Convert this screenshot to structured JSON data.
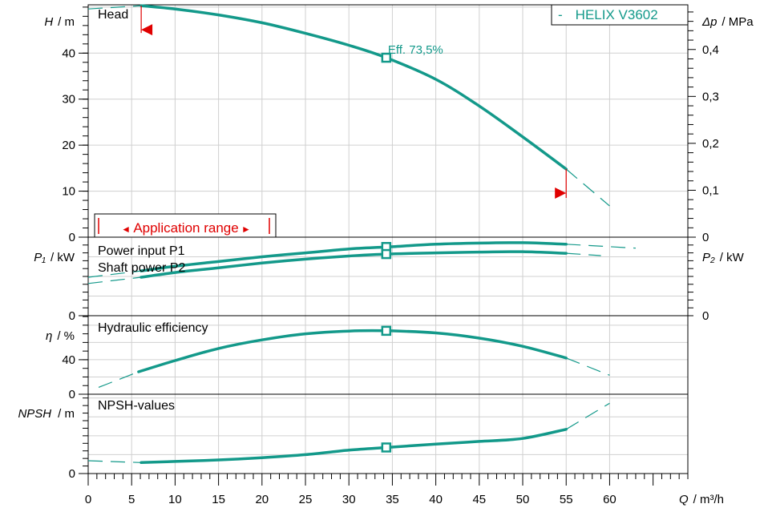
{
  "chart_data": {
    "type": "line",
    "product_name": "HELIX V3602",
    "product_prefix": "-",
    "curve_color": "#13998a",
    "marker_color": "#e00000",
    "x_axis": {
      "label_symbol": "Q",
      "label_unit": "/ m³/h",
      "range": [
        0,
        69
      ],
      "ticks": [
        0,
        5,
        10,
        15,
        20,
        25,
        30,
        35,
        40,
        45,
        50,
        55,
        60
      ]
    },
    "duty_point": {
      "q": 34.3,
      "h": 39.0,
      "label": "Eff.  73,5%"
    },
    "application_range": {
      "label": "Application range",
      "q_min": 6.1,
      "q_max": 55.0
    },
    "panels": [
      {
        "id": "head",
        "title": "Head",
        "y_label_symbol": "H",
        "y_label_unit": "/ m",
        "y_range": [
          0,
          50.5
        ],
        "y_ticks": [
          0,
          10,
          20,
          30,
          40
        ],
        "y2_label_symbol": "Δp",
        "y2_label_unit": "/ MPa",
        "y2_ticks": [
          "0",
          "0,1",
          "0,2",
          "0,3",
          "0,4"
        ],
        "series": [
          {
            "solid": [
              [
                6.1,
                50.3
              ],
              [
                10,
                49.6
              ],
              [
                15,
                48.3
              ],
              [
                20,
                46.6
              ],
              [
                25,
                44.3
              ],
              [
                30,
                41.7
              ],
              [
                34.3,
                39.0
              ],
              [
                40,
                34.3
              ],
              [
                45,
                28.5
              ],
              [
                50,
                21.8
              ],
              [
                55,
                14.8
              ]
            ],
            "dashed_left": [
              [
                0,
                49.6
              ],
              [
                6.1,
                50.3
              ]
            ],
            "dashed_right": [
              [
                55,
                14.8
              ],
              [
                60,
                6.8
              ]
            ]
          }
        ]
      },
      {
        "id": "power",
        "title": "Power input P1",
        "subtitle": "Shaft power P2",
        "y_label_symbol": "P₁",
        "y_label_unit": "/ kW",
        "y2_label_symbol": "P₂",
        "y2_label_unit": "/ kW",
        "y_range": [
          0,
          10
        ],
        "y_ticks": [
          0
        ],
        "y2_ticks": [
          "0"
        ],
        "series": [
          {
            "name": "Power input P1",
            "solid": [
              [
                6.1,
                5.7
              ],
              [
                10,
                6.3
              ],
              [
                15,
                6.9
              ],
              [
                20,
                7.5
              ],
              [
                25,
                8.0
              ],
              [
                30,
                8.5
              ],
              [
                34.3,
                8.75
              ],
              [
                40,
                9.1
              ],
              [
                45,
                9.25
              ],
              [
                50,
                9.3
              ],
              [
                55,
                9.1
              ]
            ],
            "dashed_left": [
              [
                0,
                4.9
              ],
              [
                6.1,
                5.7
              ]
            ],
            "dashed_right": [
              [
                55,
                9.1
              ],
              [
                63,
                8.6
              ]
            ]
          },
          {
            "name": "Shaft power P2",
            "solid": [
              [
                6.1,
                4.9
              ],
              [
                10,
                5.5
              ],
              [
                15,
                6.1
              ],
              [
                20,
                6.7
              ],
              [
                25,
                7.2
              ],
              [
                30,
                7.6
              ],
              [
                34.3,
                7.85
              ],
              [
                40,
                8.0
              ],
              [
                45,
                8.1
              ],
              [
                50,
                8.15
              ],
              [
                55,
                7.95
              ]
            ],
            "dashed_left": [
              [
                0,
                4.1
              ],
              [
                6.1,
                4.9
              ]
            ],
            "dashed_right": [
              [
                55,
                7.95
              ],
              [
                59,
                7.65
              ]
            ]
          }
        ]
      },
      {
        "id": "efficiency",
        "title": "Hydraulic efficiency",
        "y_label_symbol": "η",
        "y_label_unit": "/ %",
        "y_range": [
          0,
          91
        ],
        "y_ticks": [
          0,
          40
        ],
        "series": [
          {
            "solid": [
              [
                5.8,
                26
              ],
              [
                10,
                39
              ],
              [
                15,
                53
              ],
              [
                20,
                63
              ],
              [
                25,
                70
              ],
              [
                30,
                73.2
              ],
              [
                34.3,
                73.5
              ],
              [
                40,
                71
              ],
              [
                45,
                65
              ],
              [
                50,
                55.5
              ],
              [
                55,
                42
              ]
            ],
            "dashed_left": [
              [
                1.2,
                8
              ],
              [
                5.8,
                26
              ]
            ],
            "dashed_right": [
              [
                55,
                42
              ],
              [
                60,
                22
              ]
            ]
          }
        ]
      },
      {
        "id": "npsh",
        "title": "NPSH-values",
        "y_label_symbol": "NPSH",
        "y_label_unit": "/ m",
        "y_range": [
          0,
          10.5
        ],
        "y_ticks": [
          0
        ],
        "series": [
          {
            "solid": [
              [
                6.1,
                1.45
              ],
              [
                10,
                1.6
              ],
              [
                15,
                1.8
              ],
              [
                20,
                2.1
              ],
              [
                25,
                2.5
              ],
              [
                30,
                3.1
              ],
              [
                34.3,
                3.45
              ],
              [
                40,
                3.9
              ],
              [
                45,
                4.25
              ],
              [
                50,
                4.65
              ],
              [
                55,
                5.85
              ]
            ],
            "dashed_left": [
              [
                0,
                1.7
              ],
              [
                6.1,
                1.45
              ]
            ],
            "dashed_right": [
              [
                55,
                5.85
              ],
              [
                60,
                9.3
              ]
            ]
          }
        ]
      }
    ]
  }
}
